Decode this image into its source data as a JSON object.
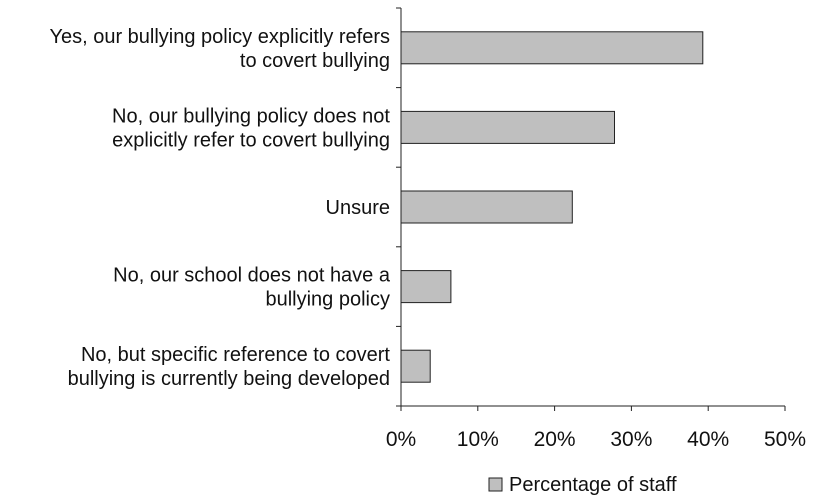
{
  "chart_data": {
    "type": "bar",
    "orientation": "horizontal",
    "categories": [
      [
        "Yes, our bullying policy explicitly refers",
        "to covert bullying"
      ],
      [
        "No, our bullying policy does not",
        "explicitly refer to covert bullying"
      ],
      [
        "Unsure"
      ],
      [
        "No, our school does not have a",
        "bullying policy"
      ],
      [
        "No, but specific reference to covert",
        "bullying is currently being developed"
      ]
    ],
    "series": [
      {
        "name": "Percentage of staff",
        "values": [
          39.3,
          27.8,
          22.3,
          6.5,
          3.8
        ]
      }
    ],
    "xlim": [
      0,
      50
    ],
    "x_ticks": [
      0,
      10,
      20,
      30,
      40,
      50
    ],
    "x_tick_labels": [
      "0%",
      "10%",
      "20%",
      "30%",
      "40%",
      "50%"
    ],
    "title": "",
    "xlabel": "",
    "ylabel": "",
    "grid": false,
    "legend_position": "bottom",
    "colors": {
      "bar_fill": "#bfbfbf",
      "bar_stroke": "#222222",
      "axis": "#222222",
      "text": "#111111"
    }
  }
}
